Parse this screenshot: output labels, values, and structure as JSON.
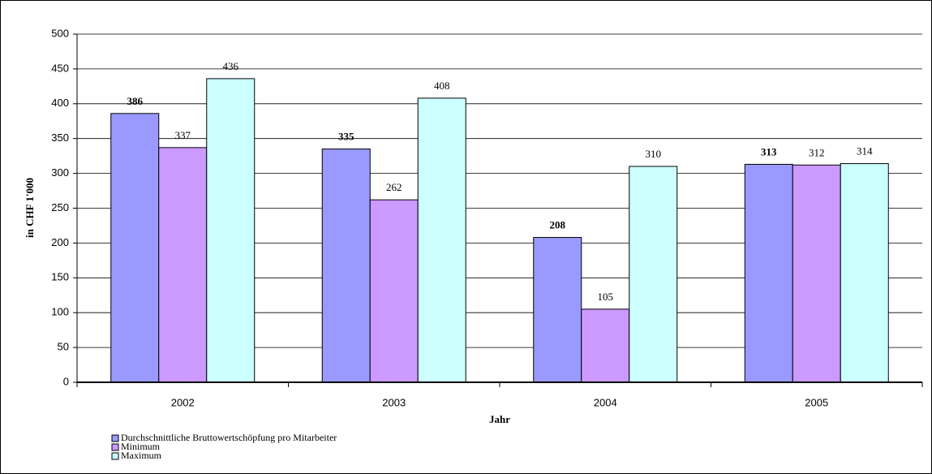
{
  "chart_data": {
    "type": "bar",
    "categories": [
      "2002",
      "2003",
      "2004",
      "2005"
    ],
    "series": [
      {
        "name": "Durchschnittliche Bruttowertschöpfung pro Mitarbeiter",
        "color": "#9999ff",
        "values": [
          386,
          335,
          208,
          313
        ],
        "bold_labels": true
      },
      {
        "name": "Minimum",
        "color": "#cc99ff",
        "values": [
          337,
          262,
          105,
          312
        ]
      },
      {
        "name": "Maximum",
        "color": "#ccffff",
        "values": [
          436,
          408,
          310,
          314
        ]
      }
    ],
    "ylabel": "in CHF 1'000",
    "xlabel": "Jahr",
    "ylim": [
      0,
      500
    ],
    "yticks": [
      0,
      50,
      100,
      150,
      200,
      250,
      300,
      350,
      400,
      450,
      500
    ],
    "grid": true,
    "legend": "bottom-left"
  }
}
